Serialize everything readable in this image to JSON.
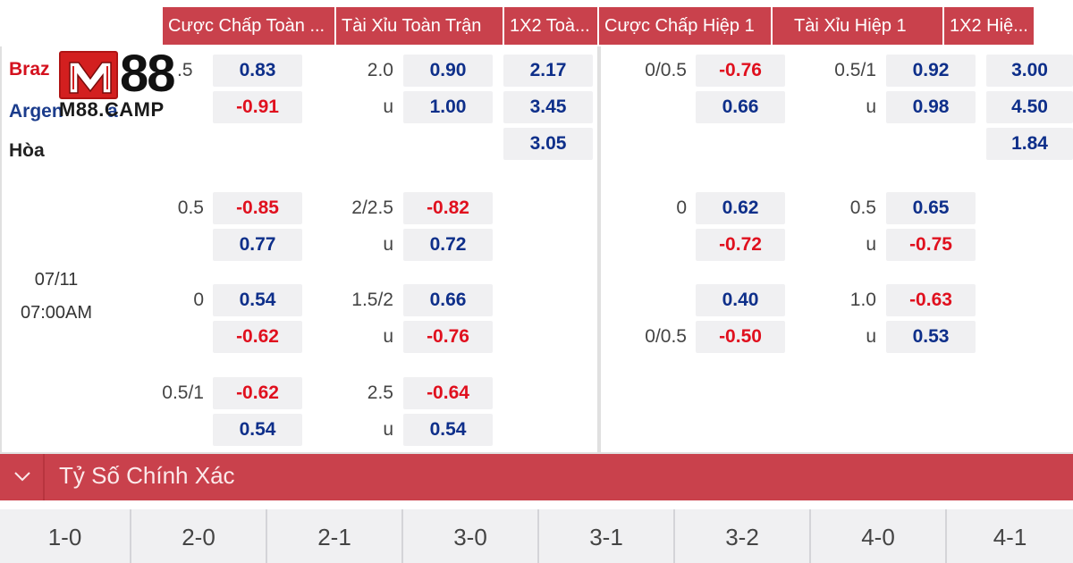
{
  "header": {
    "cols": [
      "Cược Chấp Toàn ...",
      "Tài Xỉu Toàn Trận",
      "1X2 Toà...",
      "Cược Chấp Hiệp 1",
      "Tài Xỉu Hiệp 1",
      "1X2 Hiệ..."
    ]
  },
  "logo": {
    "number": "88",
    "sub": "M88.CAMP"
  },
  "match": {
    "home": "Braz",
    "home_line": ".5",
    "away": "Argen",
    "away_tail": "a",
    "draw": "Hòa",
    "date": "07/11",
    "time": "07:00AM"
  },
  "rows": [
    {
      "ft_hdp_line": "",
      "ft_hdp_a": "0.83",
      "ft_hdp_b": "-0.91",
      "ft_ou_line": "2.0",
      "ft_ou_u": "u",
      "ft_ou_a": "0.90",
      "ft_ou_b": "1.00",
      "ft_1x2": [
        "2.17",
        "3.45",
        "3.05"
      ],
      "h1_hdp_line": "0/0.5",
      "h1_hdp_a": "-0.76",
      "h1_hdp_b": "0.66",
      "h1_ou_line": "0.5/1",
      "h1_ou_u": "u",
      "h1_ou_a": "0.92",
      "h1_ou_b": "0.98",
      "h1_1x2": [
        "3.00",
        "4.50",
        "1.84"
      ]
    },
    {
      "ft_hdp_line": "0.5",
      "ft_hdp_a": "-0.85",
      "ft_hdp_b": "0.77",
      "ft_ou_line": "2/2.5",
      "ft_ou_u": "u",
      "ft_ou_a": "-0.82",
      "ft_ou_b": "0.72",
      "h1_hdp_line": "0",
      "h1_hdp_a": "0.62",
      "h1_hdp_b": "-0.72",
      "h1_ou_line": "0.5",
      "h1_ou_u": "u",
      "h1_ou_a": "0.65",
      "h1_ou_b": "-0.75"
    },
    {
      "ft_hdp_line": "0",
      "ft_hdp_a": "0.54",
      "ft_hdp_b": "-0.62",
      "ft_ou_line": "1.5/2",
      "ft_ou_u": "u",
      "ft_ou_a": "0.66",
      "ft_ou_b": "-0.76",
      "h1_hdp_line": "0/0.5",
      "h1_hdp_a": "0.40",
      "h1_hdp_b": "-0.50",
      "h1_ou_line": "1.0",
      "h1_ou_u": "u",
      "h1_ou_a": "-0.63",
      "h1_ou_b": "0.53"
    },
    {
      "ft_hdp_line": "0.5/1",
      "ft_hdp_a": "-0.62",
      "ft_hdp_b": "0.54",
      "ft_ou_line": "2.5",
      "ft_ou_u": "u",
      "ft_ou_a": "-0.64",
      "ft_ou_b": "0.54"
    }
  ],
  "section": {
    "title": "Tỷ Số Chính Xác"
  },
  "scores": [
    "1-0",
    "2-0",
    "2-1",
    "3-0",
    "3-1",
    "3-2",
    "4-0",
    "4-1"
  ],
  "colors": {
    "accent": "#c9414c",
    "positive": "#0e2f8a",
    "negative": "#e0101e"
  }
}
